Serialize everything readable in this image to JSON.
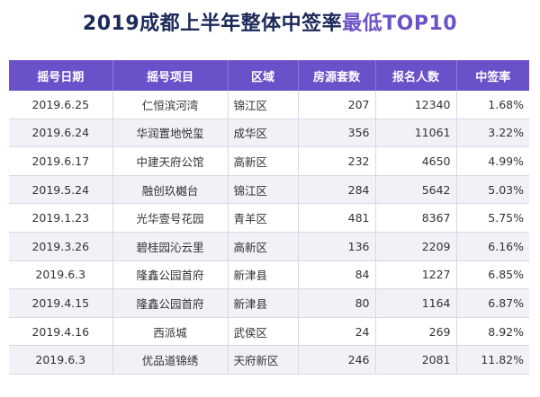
{
  "title": {
    "main": "2019成都上半年整体中签率",
    "highlight": "最低TOP10"
  },
  "chart_data": {
    "type": "table",
    "columns": [
      "摇号日期",
      "摇号项目",
      "区域",
      "房源套数",
      "报名人数",
      "中签率"
    ],
    "rows": [
      [
        "2019.6.25",
        "仁恒滨河湾",
        "锦江区",
        "207",
        "12340",
        "1.68%"
      ],
      [
        "2019.6.24",
        "华润置地悦玺",
        "成华区",
        "356",
        "11061",
        "3.22%"
      ],
      [
        "2019.6.17",
        "中建天府公馆",
        "高新区",
        "232",
        "4650",
        "4.99%"
      ],
      [
        "2019.5.24",
        "融创玖樾台",
        "锦江区",
        "284",
        "5642",
        "5.03%"
      ],
      [
        "2019.1.23",
        "光华壹号花园",
        "青羊区",
        "481",
        "8367",
        "5.75%"
      ],
      [
        "2019.3.26",
        "碧桂园沁云里",
        "高新区",
        "136",
        "2209",
        "6.16%"
      ],
      [
        "2019.6.3",
        "隆鑫公园首府",
        "新津县",
        "84",
        "1227",
        "6.85%"
      ],
      [
        "2019.4.15",
        "隆鑫公园首府",
        "新津县",
        "80",
        "1164",
        "6.87%"
      ],
      [
        "2019.4.16",
        "西派城",
        "武侯区",
        "24",
        "269",
        "8.92%"
      ],
      [
        "2019.6.3",
        "优品道锦绣",
        "天府新区",
        "246",
        "2081",
        "11.82%"
      ]
    ]
  },
  "colors": {
    "header_bg": "#6a51c9",
    "title_dark": "#1c2a5a",
    "title_accent": "#6a52c9"
  }
}
